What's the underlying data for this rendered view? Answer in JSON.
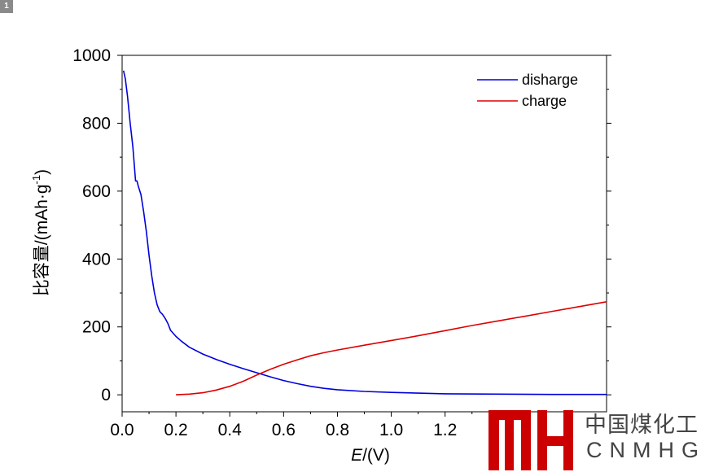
{
  "badge": "1",
  "chart_data": {
    "type": "line",
    "xlabel_italic": "E",
    "xlabel_rest": "/(V)",
    "ylabel_main": "比容量/(mAh·g",
    "ylabel_sup": "-1",
    "ylabel_close": ")",
    "xlim": [
      0.0,
      1.8
    ],
    "ylim": [
      -50,
      1000
    ],
    "xticks": [
      0.0,
      0.2,
      0.4,
      0.6,
      0.8,
      1.0,
      1.2
    ],
    "xtick_labels": [
      "0.0",
      "0.2",
      "0.4",
      "0.6",
      "0.8",
      "1.0",
      "1.2"
    ],
    "yticks": [
      0,
      200,
      400,
      600,
      800,
      1000
    ],
    "ytick_labels": [
      "0",
      "200",
      "400",
      "600",
      "800",
      "1000"
    ],
    "legend_position": "top-right",
    "series": [
      {
        "name": "disharge",
        "color": "#0000dd",
        "x": [
          0.005,
          0.012,
          0.02,
          0.03,
          0.04,
          0.05,
          0.055,
          0.06,
          0.07,
          0.08,
          0.09,
          0.1,
          0.11,
          0.12,
          0.13,
          0.14,
          0.15,
          0.16,
          0.17,
          0.18,
          0.2,
          0.22,
          0.25,
          0.3,
          0.35,
          0.4,
          0.45,
          0.5,
          0.55,
          0.6,
          0.65,
          0.7,
          0.75,
          0.8,
          0.9,
          1.0,
          1.1,
          1.2,
          1.4,
          1.6,
          1.8
        ],
        "y": [
          955,
          930,
          880,
          800,
          730,
          630,
          630,
          615,
          590,
          540,
          480,
          410,
          350,
          300,
          265,
          245,
          237,
          225,
          210,
          190,
          172,
          158,
          140,
          120,
          104,
          90,
          77,
          65,
          53,
          42,
          33,
          25,
          19,
          15,
          10,
          7,
          5,
          3,
          2,
          1,
          1
        ]
      },
      {
        "name": "charge",
        "color": "#dd0000",
        "x": [
          0.2,
          0.25,
          0.3,
          0.35,
          0.4,
          0.45,
          0.5,
          0.55,
          0.6,
          0.65,
          0.7,
          0.75,
          0.8,
          0.9,
          1.0,
          1.1,
          1.2,
          1.3,
          1.4,
          1.5,
          1.6,
          1.7,
          1.8
        ],
        "y": [
          0,
          2,
          6,
          14,
          25,
          40,
          58,
          75,
          90,
          103,
          115,
          124,
          132,
          146,
          160,
          174,
          189,
          204,
          218,
          232,
          246,
          260,
          274
        ]
      }
    ]
  },
  "watermark": {
    "cn_text": "中国煤化工",
    "en_text": "CNMHG",
    "color": "#cc0000"
  }
}
